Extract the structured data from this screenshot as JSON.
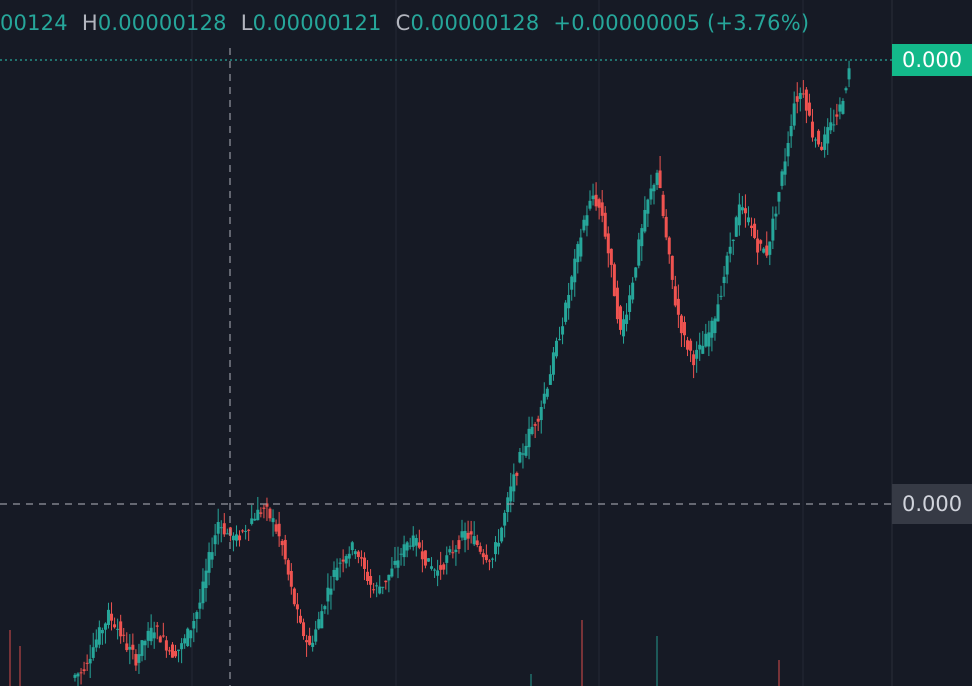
{
  "legend": {
    "open_value": "00124",
    "high_label": "H",
    "high_value": "0.00000128",
    "low_label": "L",
    "low_value": "0.00000121",
    "close_label": "C",
    "close_value": "0.00000128",
    "change": "+0.00000005 (+3.76%)"
  },
  "price_axis": {
    "last_price_tag": "0.000",
    "crosshair_price_tag": "0.000"
  },
  "colors": {
    "background": "#161a25",
    "up": "#26a69a",
    "down": "#ef5350",
    "last_price_tag": "#13b98a",
    "crosshair_tag": "#363a45"
  },
  "chart_data": {
    "type": "candlestick",
    "title": "",
    "last_bar": {
      "high": 1.28e-06,
      "low": 1.21e-06,
      "close": 1.28e-06,
      "change": 5e-08,
      "change_pct": 3.76
    },
    "crosshair_line": "dashed",
    "last_price_line": "dotted",
    "grid": true,
    "note_closes": "approximate relative close trajectory read from the plot (unitless, 0 = bottom, 100 = top of visible pane)",
    "closes": [
      2,
      5,
      8,
      11,
      9,
      6,
      4,
      7,
      9,
      7,
      5,
      6,
      9,
      13,
      20,
      26,
      24,
      23,
      25,
      27,
      28,
      26,
      22,
      15,
      9,
      6,
      10,
      15,
      19,
      21,
      22,
      18,
      15,
      16,
      18,
      21,
      23,
      22,
      19,
      18,
      20,
      22,
      24,
      23,
      21,
      20,
      25,
      31,
      36,
      40,
      43,
      48,
      54,
      60,
      67,
      74,
      78,
      75,
      66,
      56,
      62,
      70,
      77,
      82,
      71,
      61,
      55,
      52,
      54,
      57,
      63,
      70,
      76,
      74,
      70,
      69,
      76,
      84,
      93,
      95,
      88,
      86,
      89,
      92,
      98
    ],
    "volume_note": "volume bars shown faintly along bottom edge"
  }
}
